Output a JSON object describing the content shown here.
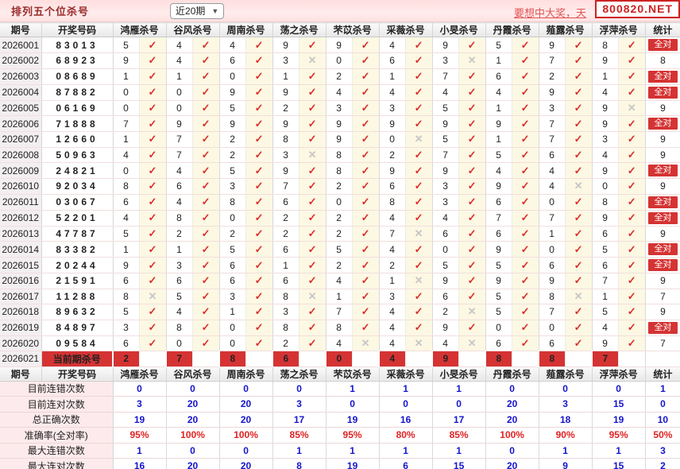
{
  "header": {
    "title": "排列五个位杀号",
    "range_value": "近20期",
    "promo": "要想中大奖，天",
    "site": "800820.NET"
  },
  "table": {
    "col_period": "期号",
    "col_number": "开奖号码",
    "col_stat": "统计",
    "columns": [
      "鸿雁杀号",
      "谷风杀号",
      "周南杀号",
      "荡之杀号",
      "芣苡杀号",
      "采薇杀号",
      "小旻杀号",
      "丹霞杀号",
      "薤露杀号",
      "浮萍杀号"
    ],
    "rows": [
      {
        "period": "2026001",
        "number": "83013",
        "kills": [
          [
            "5",
            1
          ],
          [
            "4",
            1
          ],
          [
            "4",
            1
          ],
          [
            "9",
            1
          ],
          [
            "9",
            1
          ],
          [
            "4",
            1
          ],
          [
            "9",
            1
          ],
          [
            "5",
            1
          ],
          [
            "9",
            1
          ],
          [
            "8",
            1
          ]
        ],
        "stat": "全对",
        "all": true
      },
      {
        "period": "2026002",
        "number": "68923",
        "kills": [
          [
            "9",
            1
          ],
          [
            "4",
            1
          ],
          [
            "6",
            1
          ],
          [
            "3",
            0
          ],
          [
            "0",
            1
          ],
          [
            "6",
            1
          ],
          [
            "3",
            0
          ],
          [
            "1",
            1
          ],
          [
            "7",
            1
          ],
          [
            "9",
            1
          ]
        ],
        "stat": "8",
        "all": false
      },
      {
        "period": "2026003",
        "number": "08689",
        "kills": [
          [
            "1",
            1
          ],
          [
            "1",
            1
          ],
          [
            "0",
            1
          ],
          [
            "1",
            1
          ],
          [
            "2",
            1
          ],
          [
            "1",
            1
          ],
          [
            "7",
            1
          ],
          [
            "6",
            1
          ],
          [
            "2",
            1
          ],
          [
            "1",
            1
          ]
        ],
        "stat": "全对",
        "all": true
      },
      {
        "period": "2026004",
        "number": "87882",
        "kills": [
          [
            "0",
            1
          ],
          [
            "0",
            1
          ],
          [
            "9",
            1
          ],
          [
            "9",
            1
          ],
          [
            "4",
            1
          ],
          [
            "4",
            1
          ],
          [
            "4",
            1
          ],
          [
            "4",
            1
          ],
          [
            "9",
            1
          ],
          [
            "4",
            1
          ]
        ],
        "stat": "全对",
        "all": true
      },
      {
        "period": "2026005",
        "number": "06169",
        "kills": [
          [
            "0",
            1
          ],
          [
            "0",
            1
          ],
          [
            "5",
            1
          ],
          [
            "2",
            1
          ],
          [
            "3",
            1
          ],
          [
            "3",
            1
          ],
          [
            "5",
            1
          ],
          [
            "1",
            1
          ],
          [
            "3",
            1
          ],
          [
            "9",
            0
          ]
        ],
        "stat": "9",
        "all": false
      },
      {
        "period": "2026006",
        "number": "71888",
        "kills": [
          [
            "7",
            1
          ],
          [
            "9",
            1
          ],
          [
            "9",
            1
          ],
          [
            "9",
            1
          ],
          [
            "9",
            1
          ],
          [
            "9",
            1
          ],
          [
            "9",
            1
          ],
          [
            "9",
            1
          ],
          [
            "7",
            1
          ],
          [
            "9",
            1
          ]
        ],
        "stat": "全对",
        "all": true
      },
      {
        "period": "2026007",
        "number": "12660",
        "kills": [
          [
            "1",
            1
          ],
          [
            "7",
            1
          ],
          [
            "2",
            1
          ],
          [
            "8",
            1
          ],
          [
            "9",
            1
          ],
          [
            "0",
            0
          ],
          [
            "5",
            1
          ],
          [
            "1",
            1
          ],
          [
            "7",
            1
          ],
          [
            "3",
            1
          ]
        ],
        "stat": "9",
        "all": false
      },
      {
        "period": "2026008",
        "number": "50963",
        "kills": [
          [
            "4",
            1
          ],
          [
            "7",
            1
          ],
          [
            "2",
            1
          ],
          [
            "3",
            0
          ],
          [
            "8",
            1
          ],
          [
            "2",
            1
          ],
          [
            "7",
            1
          ],
          [
            "5",
            1
          ],
          [
            "6",
            1
          ],
          [
            "4",
            1
          ]
        ],
        "stat": "9",
        "all": false
      },
      {
        "period": "2026009",
        "number": "24821",
        "kills": [
          [
            "0",
            1
          ],
          [
            "4",
            1
          ],
          [
            "5",
            1
          ],
          [
            "9",
            1
          ],
          [
            "8",
            1
          ],
          [
            "9",
            1
          ],
          [
            "9",
            1
          ],
          [
            "4",
            1
          ],
          [
            "4",
            1
          ],
          [
            "9",
            1
          ]
        ],
        "stat": "全对",
        "all": true
      },
      {
        "period": "2026010",
        "number": "92034",
        "kills": [
          [
            "8",
            1
          ],
          [
            "6",
            1
          ],
          [
            "3",
            1
          ],
          [
            "7",
            1
          ],
          [
            "2",
            1
          ],
          [
            "6",
            1
          ],
          [
            "3",
            1
          ],
          [
            "9",
            1
          ],
          [
            "4",
            0
          ],
          [
            "0",
            1
          ]
        ],
        "stat": "9",
        "all": false
      },
      {
        "period": "2026011",
        "number": "03067",
        "kills": [
          [
            "6",
            1
          ],
          [
            "4",
            1
          ],
          [
            "8",
            1
          ],
          [
            "6",
            1
          ],
          [
            "0",
            1
          ],
          [
            "8",
            1
          ],
          [
            "3",
            1
          ],
          [
            "6",
            1
          ],
          [
            "0",
            1
          ],
          [
            "8",
            1
          ]
        ],
        "stat": "全对",
        "all": true
      },
      {
        "period": "2026012",
        "number": "52201",
        "kills": [
          [
            "4",
            1
          ],
          [
            "8",
            1
          ],
          [
            "0",
            1
          ],
          [
            "2",
            1
          ],
          [
            "2",
            1
          ],
          [
            "4",
            1
          ],
          [
            "4",
            1
          ],
          [
            "7",
            1
          ],
          [
            "7",
            1
          ],
          [
            "9",
            1
          ]
        ],
        "stat": "全对",
        "all": true
      },
      {
        "period": "2026013",
        "number": "47787",
        "kills": [
          [
            "5",
            1
          ],
          [
            "2",
            1
          ],
          [
            "2",
            1
          ],
          [
            "2",
            1
          ],
          [
            "2",
            1
          ],
          [
            "7",
            0
          ],
          [
            "6",
            1
          ],
          [
            "6",
            1
          ],
          [
            "1",
            1
          ],
          [
            "6",
            1
          ]
        ],
        "stat": "9",
        "all": false
      },
      {
        "period": "2026014",
        "number": "83382",
        "kills": [
          [
            "1",
            1
          ],
          [
            "1",
            1
          ],
          [
            "5",
            1
          ],
          [
            "6",
            1
          ],
          [
            "5",
            1
          ],
          [
            "4",
            1
          ],
          [
            "0",
            1
          ],
          [
            "9",
            1
          ],
          [
            "0",
            1
          ],
          [
            "5",
            1
          ]
        ],
        "stat": "全对",
        "all": true
      },
      {
        "period": "2026015",
        "number": "20244",
        "kills": [
          [
            "9",
            1
          ],
          [
            "3",
            1
          ],
          [
            "6",
            1
          ],
          [
            "1",
            1
          ],
          [
            "2",
            1
          ],
          [
            "2",
            1
          ],
          [
            "5",
            1
          ],
          [
            "5",
            1
          ],
          [
            "6",
            1
          ],
          [
            "6",
            1
          ]
        ],
        "stat": "全对",
        "all": true
      },
      {
        "period": "2026016",
        "number": "21591",
        "kills": [
          [
            "6",
            1
          ],
          [
            "6",
            1
          ],
          [
            "6",
            1
          ],
          [
            "6",
            1
          ],
          [
            "4",
            1
          ],
          [
            "1",
            0
          ],
          [
            "9",
            1
          ],
          [
            "9",
            1
          ],
          [
            "9",
            1
          ],
          [
            "7",
            1
          ]
        ],
        "stat": "9",
        "all": false
      },
      {
        "period": "2026017",
        "number": "11288",
        "kills": [
          [
            "8",
            0
          ],
          [
            "5",
            1
          ],
          [
            "3",
            1
          ],
          [
            "8",
            0
          ],
          [
            "1",
            1
          ],
          [
            "3",
            1
          ],
          [
            "6",
            1
          ],
          [
            "5",
            1
          ],
          [
            "8",
            0
          ],
          [
            "1",
            1
          ]
        ],
        "stat": "7",
        "all": false
      },
      {
        "period": "2026018",
        "number": "89632",
        "kills": [
          [
            "5",
            1
          ],
          [
            "4",
            1
          ],
          [
            "1",
            1
          ],
          [
            "3",
            1
          ],
          [
            "7",
            1
          ],
          [
            "4",
            1
          ],
          [
            "2",
            0
          ],
          [
            "5",
            1
          ],
          [
            "7",
            1
          ],
          [
            "5",
            1
          ]
        ],
        "stat": "9",
        "all": false
      },
      {
        "period": "2026019",
        "number": "84897",
        "kills": [
          [
            "3",
            1
          ],
          [
            "8",
            1
          ],
          [
            "0",
            1
          ],
          [
            "8",
            1
          ],
          [
            "8",
            1
          ],
          [
            "4",
            1
          ],
          [
            "9",
            1
          ],
          [
            "0",
            1
          ],
          [
            "0",
            1
          ],
          [
            "4",
            1
          ]
        ],
        "stat": "全对",
        "all": true
      },
      {
        "period": "2026020",
        "number": "09584",
        "kills": [
          [
            "6",
            1
          ],
          [
            "0",
            1
          ],
          [
            "0",
            1
          ],
          [
            "2",
            1
          ],
          [
            "4",
            0
          ],
          [
            "4",
            0
          ],
          [
            "4",
            0
          ],
          [
            "6",
            1
          ],
          [
            "6",
            1
          ],
          [
            "9",
            1
          ]
        ],
        "stat": "7",
        "all": false
      }
    ],
    "current": {
      "period": "2026021",
      "label": "当前期杀号",
      "kills": [
        "2",
        "7",
        "8",
        "6",
        "0",
        "4",
        "9",
        "8",
        "8",
        "7"
      ]
    },
    "summary": [
      {
        "label": "目前连错次数",
        "values": [
          "0",
          "0",
          "0",
          "0",
          "1",
          "1",
          "1",
          "0",
          "0",
          "0"
        ],
        "stat": "1",
        "color": "blue"
      },
      {
        "label": "目前连对次数",
        "values": [
          "3",
          "20",
          "20",
          "3",
          "0",
          "0",
          "0",
          "20",
          "3",
          "15"
        ],
        "stat": "0",
        "color": "blue"
      },
      {
        "label": "总正确次数",
        "values": [
          "19",
          "20",
          "20",
          "17",
          "19",
          "16",
          "17",
          "20",
          "18",
          "19"
        ],
        "stat": "10",
        "color": "blue"
      },
      {
        "label": "准确率(全对率)",
        "values": [
          "95%",
          "100%",
          "100%",
          "85%",
          "95%",
          "80%",
          "85%",
          "100%",
          "90%",
          "95%"
        ],
        "stat": "50%",
        "color": "red"
      },
      {
        "label": "最大连错次数",
        "values": [
          "1",
          "0",
          "0",
          "1",
          "1",
          "1",
          "1",
          "0",
          "1",
          "1"
        ],
        "stat": "3",
        "color": "blue"
      },
      {
        "label": "最大连对次数",
        "values": [
          "16",
          "20",
          "20",
          "8",
          "19",
          "6",
          "15",
          "20",
          "9",
          "15"
        ],
        "stat": "2",
        "color": "blue"
      }
    ]
  },
  "colors": {
    "accent_red": "#d53333",
    "check": "#d9302c",
    "cross": "#c6c6c6",
    "value_blue": "#1515cc",
    "value_red": "#e02222",
    "winning_number": "#e03c3c"
  }
}
